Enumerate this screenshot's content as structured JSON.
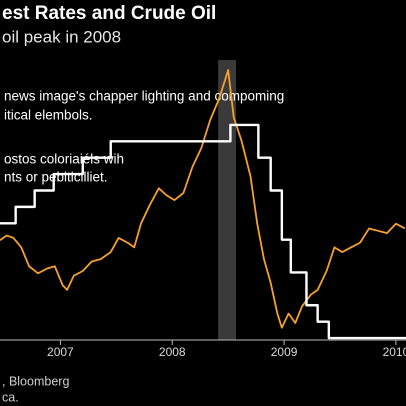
{
  "chart_data": {
    "type": "line",
    "title": "est Rates and Crude Oil",
    "subtitle": "oil peak in 2008",
    "annotations": [
      "news image's chapper lighting  and compoming",
      "itical elembols.",
      "ostos coloriaiéls wih",
      "nts or pebiticilliet."
    ],
    "source": [
      ", Bloomberg",
      "ca."
    ],
    "xlim": [
      2006.46,
      2010.09
    ],
    "xticks": [
      2007,
      2008,
      2009,
      2010
    ],
    "ylim": [
      30.8,
      166.2
    ],
    "y2lim": [
      0.97,
      5.85
    ],
    "shaded_span": [
      2008.41,
      2008.57
    ],
    "shade_color": "#3a3a3a",
    "series": [
      {
        "color": "#f5a02f",
        "x": [
          2006.46,
          2006.52,
          2006.58,
          2006.65,
          2006.72,
          2006.8,
          2006.88,
          2006.95,
          2007.02,
          2007.06,
          2007.12,
          2007.2,
          2007.28,
          2007.36,
          2007.45,
          2007.52,
          2007.6,
          2007.66,
          2007.72,
          2007.8,
          2007.88,
          2007.95,
          2008.02,
          2008.1,
          2008.18,
          2008.26,
          2008.34,
          2008.42,
          2008.5,
          2008.55,
          2008.62,
          2008.7,
          2008.76,
          2008.82,
          2008.88,
          2008.94,
          2008.98,
          2009.04,
          2009.1,
          2009.16,
          2009.24,
          2009.3,
          2009.38,
          2009.45,
          2009.52,
          2009.6,
          2009.68,
          2009.76,
          2009.84,
          2009.92,
          2010.0,
          2010.08
        ],
        "values": [
          73,
          75,
          74,
          70,
          62,
          59,
          61,
          62,
          54,
          52,
          58,
          60,
          64,
          65,
          68,
          74,
          72,
          70,
          80,
          88,
          95,
          92,
          90,
          93,
          104,
          112,
          124,
          133,
          145,
          125,
          115,
          100,
          80,
          65,
          55,
          42,
          36,
          42,
          38,
          45,
          50,
          52,
          60,
          70,
          68,
          70,
          72,
          78,
          77,
          76,
          80,
          78
        ]
      },
      {
        "color": "#ffffff",
        "axis": "y2",
        "step": true,
        "x": [
          2006.46,
          2006.6,
          2006.77,
          2006.94,
          2007.2,
          2007.45,
          2008.52,
          2008.77,
          2008.88,
          2008.98,
          2009.06,
          2009.2,
          2009.3,
          2009.4,
          2010.09
        ],
        "values": [
          2.75,
          3.0,
          3.25,
          3.5,
          3.75,
          4.0,
          4.25,
          3.75,
          3.25,
          2.5,
          2.0,
          1.5,
          1.25,
          1.0,
          1.0
        ]
      }
    ]
  }
}
